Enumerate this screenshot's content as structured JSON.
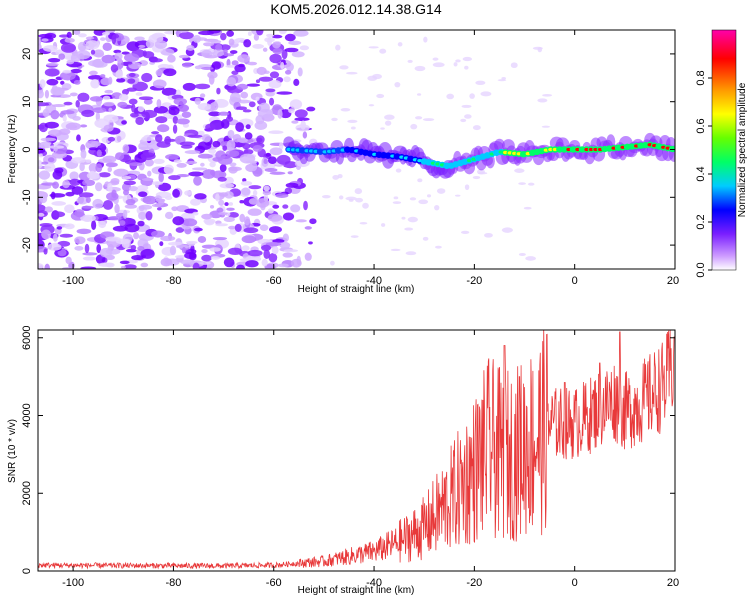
{
  "title": "KOM5.2026.012.14.38.G14",
  "chart_data": [
    {
      "type": "heatmap",
      "name": "spectrogram",
      "xlabel": "Height of straight line (km)",
      "ylabel": "Frequency (Hz)",
      "xlim": [
        -107,
        20
      ],
      "ylim": [
        -25,
        25
      ],
      "xticks": [
        -100,
        -80,
        -60,
        -40,
        -20,
        0,
        20
      ],
      "yticks": [
        -20,
        -10,
        0,
        10,
        20
      ],
      "colorbar": {
        "label": "Normalized spectral amplitude",
        "range": [
          0,
          1
        ],
        "ticks": [
          0.0,
          0.2,
          0.4,
          0.6,
          0.8
        ],
        "colors": [
          "#ffffff",
          "#cc99ff",
          "#7a1fff",
          "#0000ff",
          "#00ccff",
          "#00ff66",
          "#66ff00",
          "#ffff00",
          "#ff9900",
          "#ff0000",
          "#ff00aa"
        ]
      },
      "ridge": {
        "description": "dominant frequency line near 0 Hz",
        "points": [
          [
            -57,
            0
          ],
          [
            -50,
            -0.5
          ],
          [
            -45,
            0
          ],
          [
            -40,
            -1
          ],
          [
            -35,
            -1.5
          ],
          [
            -30,
            -2.5
          ],
          [
            -25,
            -3.5
          ],
          [
            -20,
            -2
          ],
          [
            -15,
            -0.5
          ],
          [
            -10,
            -1
          ],
          [
            -5,
            0
          ],
          [
            0,
            0
          ],
          [
            5,
            0
          ],
          [
            10,
            0.5
          ],
          [
            15,
            1
          ],
          [
            20,
            0
          ]
        ]
      }
    },
    {
      "type": "line",
      "name": "snr",
      "xlabel": "Height of straight line (km)",
      "ylabel": "SNR (10 * v/v)",
      "xlim": [
        -107,
        20
      ],
      "ylim": [
        0,
        6200
      ],
      "xticks": [
        -100,
        -80,
        -60,
        -40,
        -20,
        0,
        20
      ],
      "yticks": [
        0,
        2000,
        4000,
        6000
      ],
      "color": "#e8393a",
      "envelope": [
        [
          -107,
          150
        ],
        [
          -90,
          140
        ],
        [
          -70,
          130
        ],
        [
          -60,
          150
        ],
        [
          -50,
          250
        ],
        [
          -40,
          500
        ],
        [
          -35,
          750
        ],
        [
          -30,
          1100
        ],
        [
          -25,
          1800
        ],
        [
          -20,
          2600
        ],
        [
          -17,
          3200
        ],
        [
          -15,
          3000
        ],
        [
          -12,
          3000
        ],
        [
          -10,
          3200
        ],
        [
          -7,
          3500
        ],
        [
          -5,
          3800
        ],
        [
          0,
          3800
        ],
        [
          3,
          4000
        ],
        [
          5,
          4200
        ],
        [
          8,
          4400
        ],
        [
          10,
          4100
        ],
        [
          13,
          4300
        ],
        [
          15,
          4500
        ],
        [
          18,
          4800
        ],
        [
          20,
          5400
        ]
      ],
      "peaks": [
        [
          -14,
          5800
        ],
        [
          -11,
          5000
        ],
        [
          -2,
          4850
        ],
        [
          5,
          5350
        ],
        [
          9,
          6150
        ],
        [
          20,
          6000
        ]
      ]
    }
  ]
}
